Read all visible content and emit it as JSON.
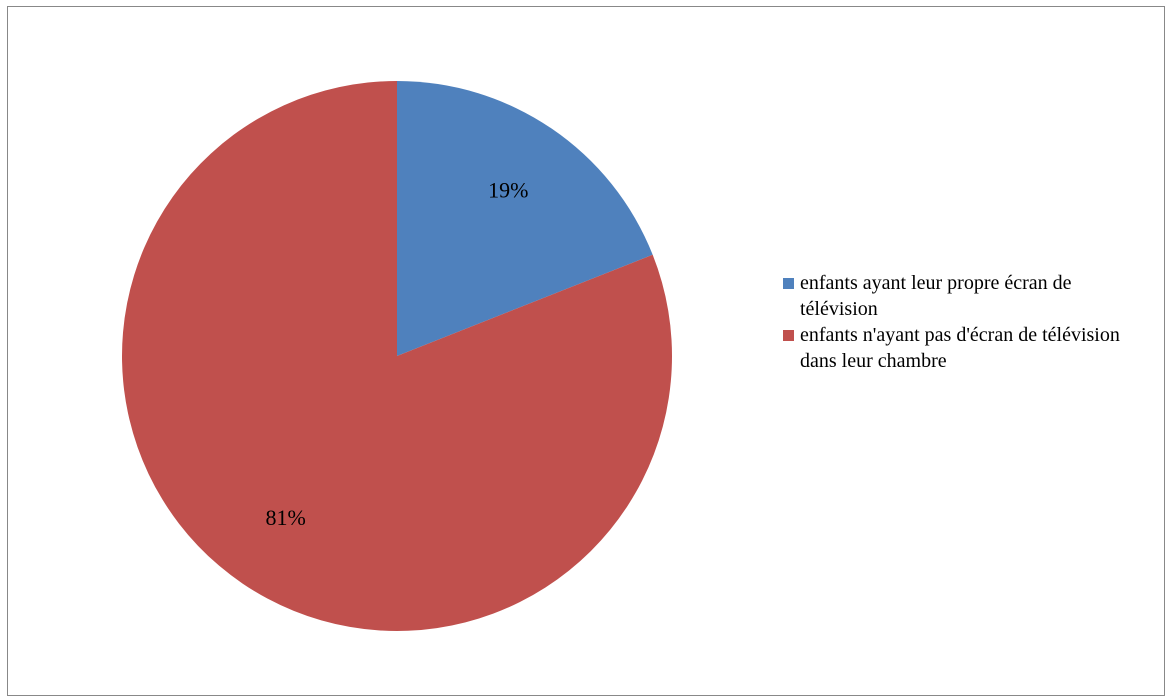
{
  "chart_data": {
    "type": "pie",
    "title": "",
    "slices": [
      {
        "label": "enfants ayant leur propre écran de télévision",
        "value": 19,
        "display": "19%",
        "color": "#4F81BD"
      },
      {
        "label": "enfants n'ayant pas d'écran de télévision dans leur chambre",
        "value": 81,
        "display": "81%",
        "color": "#C0504D"
      }
    ],
    "legend_position": "right",
    "start_angle": "12 o'clock",
    "direction": "clockwise"
  }
}
